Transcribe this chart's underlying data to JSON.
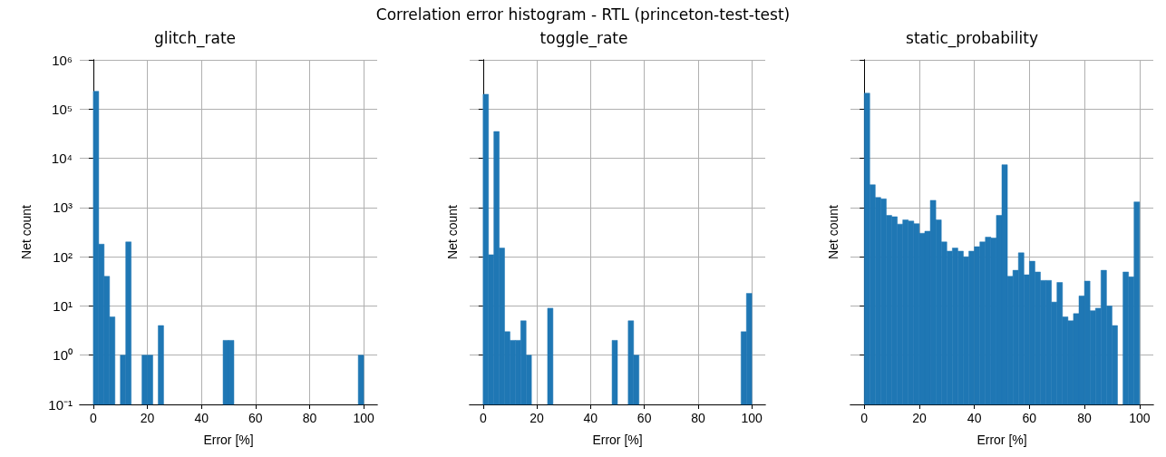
{
  "chart_data": [
    {
      "type": "histogram",
      "title": "glitch_rate",
      "xlabel": "Error [%]",
      "ylabel": "Net count",
      "annotations": [
        "Correlation error histogram - RTL (princeton-test-test)"
      ],
      "color": "#1f77b4",
      "log": "y",
      "grid": true,
      "bins": [
        0,
        2,
        4,
        6,
        8,
        10,
        12,
        14,
        16,
        18,
        20,
        22,
        24,
        26,
        28,
        30,
        32,
        34,
        36,
        38,
        40,
        42,
        44,
        46,
        48,
        50,
        52,
        54,
        56,
        58,
        60,
        62,
        64,
        66,
        68,
        70,
        72,
        74,
        76,
        78,
        80,
        82,
        84,
        86,
        88,
        90,
        92,
        94,
        96,
        98,
        100
      ],
      "values": [
        230000,
        180,
        40,
        6,
        null,
        1,
        200,
        null,
        null,
        1,
        1,
        null,
        4,
        null,
        null,
        null,
        null,
        null,
        null,
        null,
        null,
        null,
        null,
        null,
        2,
        2,
        null,
        null,
        null,
        null,
        null,
        null,
        null,
        null,
        null,
        null,
        null,
        null,
        null,
        null,
        null,
        null,
        null,
        null,
        null,
        null,
        null,
        null,
        null,
        1
      ],
      "xlim": [
        -5,
        105
      ],
      "xticks": [
        0,
        20,
        40,
        60,
        80,
        100
      ],
      "ylim": [
        0.1,
        1000000
      ],
      "yticks": [
        {
          "value": 0.1,
          "label": "10⁻¹"
        },
        {
          "value": 1,
          "label": "10⁰"
        },
        {
          "value": 10,
          "label": "10¹"
        },
        {
          "value": 100,
          "label": "10²"
        },
        {
          "value": 1000,
          "label": "10³"
        },
        {
          "value": 10000,
          "label": "10⁴"
        },
        {
          "value": 100000,
          "label": "10⁵"
        },
        {
          "value": 1000000,
          "label": "10⁶"
        }
      ]
    },
    {
      "type": "histogram",
      "title": "toggle_rate",
      "xlabel": "Error [%]",
      "ylabel": "Net count",
      "color": "#1f77b4",
      "log": "y",
      "grid": true,
      "tick_labels": "x",
      "bins": [
        0,
        2,
        4,
        6,
        8,
        10,
        12,
        14,
        16,
        18,
        20,
        22,
        24,
        26,
        28,
        30,
        32,
        34,
        36,
        38,
        40,
        42,
        44,
        46,
        48,
        50,
        52,
        54,
        56,
        58,
        60,
        62,
        64,
        66,
        68,
        70,
        72,
        74,
        76,
        78,
        80,
        82,
        84,
        86,
        88,
        90,
        92,
        94,
        96,
        98,
        100
      ],
      "values": [
        200000,
        110,
        35000,
        150,
        3,
        2,
        2,
        5,
        1,
        null,
        null,
        null,
        9,
        null,
        null,
        null,
        null,
        null,
        null,
        null,
        null,
        null,
        null,
        null,
        2,
        null,
        null,
        5,
        1,
        null,
        null,
        null,
        null,
        null,
        null,
        null,
        null,
        null,
        null,
        null,
        null,
        null,
        null,
        null,
        null,
        null,
        null,
        null,
        3,
        18
      ],
      "xlim": [
        -5,
        105
      ],
      "xticks": [
        0,
        20,
        40,
        60,
        80,
        100
      ],
      "ylim": [
        0.1,
        1000000
      ],
      "yticks": [
        {
          "value": 0.1,
          "label": null
        },
        {
          "value": 1,
          "label": null
        },
        {
          "value": 10,
          "label": null
        },
        {
          "value": 100,
          "label": null
        },
        {
          "value": 1000,
          "label": null
        },
        {
          "value": 10000,
          "label": null
        },
        {
          "value": 100000,
          "label": null
        },
        {
          "value": 1000000,
          "label": null
        }
      ]
    },
    {
      "type": "histogram",
      "title": "static_probability",
      "xlabel": "Error [%]",
      "ylabel": "Net count",
      "color": "#1f77b4",
      "log": "y",
      "grid": true,
      "tick_labels": "x",
      "bins": [
        0,
        2,
        4,
        6,
        8,
        10,
        12,
        14,
        16,
        18,
        20,
        22,
        24,
        26,
        28,
        30,
        32,
        34,
        36,
        38,
        40,
        42,
        44,
        46,
        48,
        50,
        52,
        54,
        56,
        58,
        60,
        62,
        64,
        66,
        68,
        70,
        72,
        74,
        76,
        78,
        80,
        82,
        84,
        86,
        88,
        90,
        92,
        94,
        96,
        98,
        100
      ],
      "values": [
        210000,
        2900,
        1600,
        1500,
        690,
        650,
        460,
        560,
        530,
        470,
        300,
        330,
        1400,
        560,
        200,
        130,
        150,
        130,
        100,
        130,
        160,
        200,
        250,
        240,
        690,
        7400,
        40,
        53,
        120,
        43,
        81,
        49,
        33,
        33,
        12,
        30,
        6,
        5,
        7,
        16,
        32,
        8,
        9,
        53,
        10,
        4,
        null,
        49,
        39,
        1300
      ],
      "xlim": [
        -5,
        105
      ],
      "xticks": [
        0,
        20,
        40,
        60,
        80,
        100
      ],
      "ylim": [
        0.1,
        1000000
      ],
      "yticks": [
        {
          "value": 0.1,
          "label": null
        },
        {
          "value": 1,
          "label": null
        },
        {
          "value": 10,
          "label": null
        },
        {
          "value": 100,
          "label": null
        },
        {
          "value": 1000,
          "label": null
        },
        {
          "value": 10000,
          "label": null
        },
        {
          "value": 100000,
          "label": null
        },
        {
          "value": 1000000,
          "label": null
        }
      ]
    }
  ]
}
